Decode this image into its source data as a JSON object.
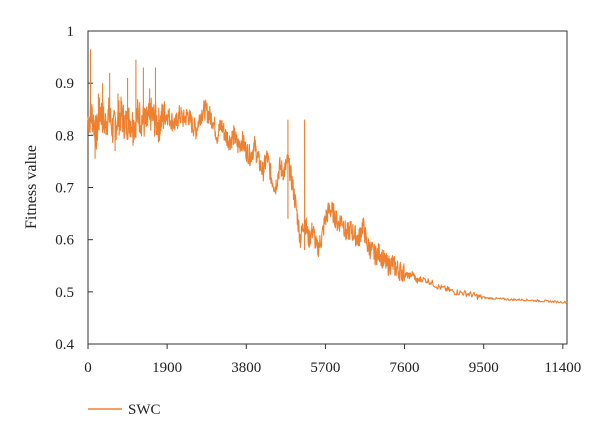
{
  "chart_data": {
    "type": "line",
    "title": "",
    "xlabel": "",
    "ylabel": "Fitness value",
    "xlim": [
      0,
      11500
    ],
    "ylim": [
      0.4,
      1.0
    ],
    "x_ticks": [
      0,
      1900,
      3800,
      5700,
      7600,
      9500,
      11400
    ],
    "y_ticks": [
      0.4,
      0.5,
      0.6,
      0.7,
      0.8,
      0.9,
      1
    ],
    "x_tick_labels": [
      "0",
      "1900",
      "3800",
      "5700",
      "7600",
      "9500",
      "11400"
    ],
    "y_tick_labels": [
      "0.4",
      "0.5",
      "0.6",
      "0.7",
      "0.8",
      "0.9",
      "1"
    ],
    "grid": false,
    "legend_position": "bottom-left",
    "series": [
      {
        "name": "SWC",
        "color": "#ED8131",
        "x": [
          0,
          100,
          200,
          300,
          400,
          500,
          600,
          700,
          800,
          900,
          1000,
          1100,
          1200,
          1300,
          1400,
          1500,
          1600,
          1700,
          1800,
          1900,
          2000,
          2100,
          2200,
          2300,
          2400,
          2500,
          2600,
          2700,
          2800,
          2900,
          3000,
          3100,
          3200,
          3300,
          3400,
          3500,
          3600,
          3700,
          3800,
          3900,
          4000,
          4100,
          4200,
          4300,
          4400,
          4500,
          4600,
          4700,
          4800,
          4900,
          5000,
          5100,
          5200,
          5300,
          5400,
          5500,
          5600,
          5700,
          5800,
          5900,
          6000,
          6100,
          6200,
          6300,
          6400,
          6500,
          6600,
          6700,
          6800,
          6900,
          7000,
          7100,
          7200,
          7300,
          7400,
          7500,
          7600,
          7700,
          7800,
          7900,
          8000,
          8200,
          8400,
          8600,
          8800,
          9000,
          9200,
          9400,
          9600,
          9800,
          10000,
          10200,
          10400,
          10600,
          10800,
          11000,
          11200,
          11500
        ],
        "values": [
          0.83,
          0.84,
          0.8,
          0.85,
          0.82,
          0.84,
          0.81,
          0.83,
          0.84,
          0.82,
          0.83,
          0.82,
          0.84,
          0.83,
          0.82,
          0.84,
          0.83,
          0.82,
          0.835,
          0.84,
          0.83,
          0.82,
          0.84,
          0.83,
          0.84,
          0.82,
          0.81,
          0.84,
          0.85,
          0.84,
          0.83,
          0.8,
          0.82,
          0.8,
          0.79,
          0.8,
          0.78,
          0.79,
          0.77,
          0.76,
          0.78,
          0.75,
          0.73,
          0.76,
          0.72,
          0.7,
          0.74,
          0.73,
          0.75,
          0.71,
          0.66,
          0.6,
          0.64,
          0.6,
          0.62,
          0.58,
          0.6,
          0.64,
          0.66,
          0.65,
          0.63,
          0.64,
          0.61,
          0.62,
          0.61,
          0.6,
          0.63,
          0.59,
          0.58,
          0.57,
          0.575,
          0.56,
          0.55,
          0.555,
          0.545,
          0.54,
          0.535,
          0.53,
          0.535,
          0.52,
          0.525,
          0.52,
          0.51,
          0.505,
          0.5,
          0.498,
          0.495,
          0.49,
          0.488,
          0.487,
          0.486,
          0.485,
          0.485,
          0.484,
          0.483,
          0.482,
          0.481,
          0.48
        ]
      }
    ],
    "spikes": [
      {
        "x": 60,
        "y": 0.965
      },
      {
        "x": 170,
        "y": 0.755
      },
      {
        "x": 250,
        "y": 0.88
      },
      {
        "x": 350,
        "y": 0.9
      },
      {
        "x": 520,
        "y": 0.92
      },
      {
        "x": 650,
        "y": 0.77
      },
      {
        "x": 720,
        "y": 0.88
      },
      {
        "x": 950,
        "y": 0.91
      },
      {
        "x": 1080,
        "y": 0.78
      },
      {
        "x": 1150,
        "y": 0.945
      },
      {
        "x": 1330,
        "y": 0.93
      },
      {
        "x": 1480,
        "y": 0.89
      },
      {
        "x": 1620,
        "y": 0.93
      },
      {
        "x": 1720,
        "y": 0.8
      },
      {
        "x": 4800,
        "y": 0.64
      },
      {
        "x": 5200,
        "y": 0.58
      }
    ]
  }
}
